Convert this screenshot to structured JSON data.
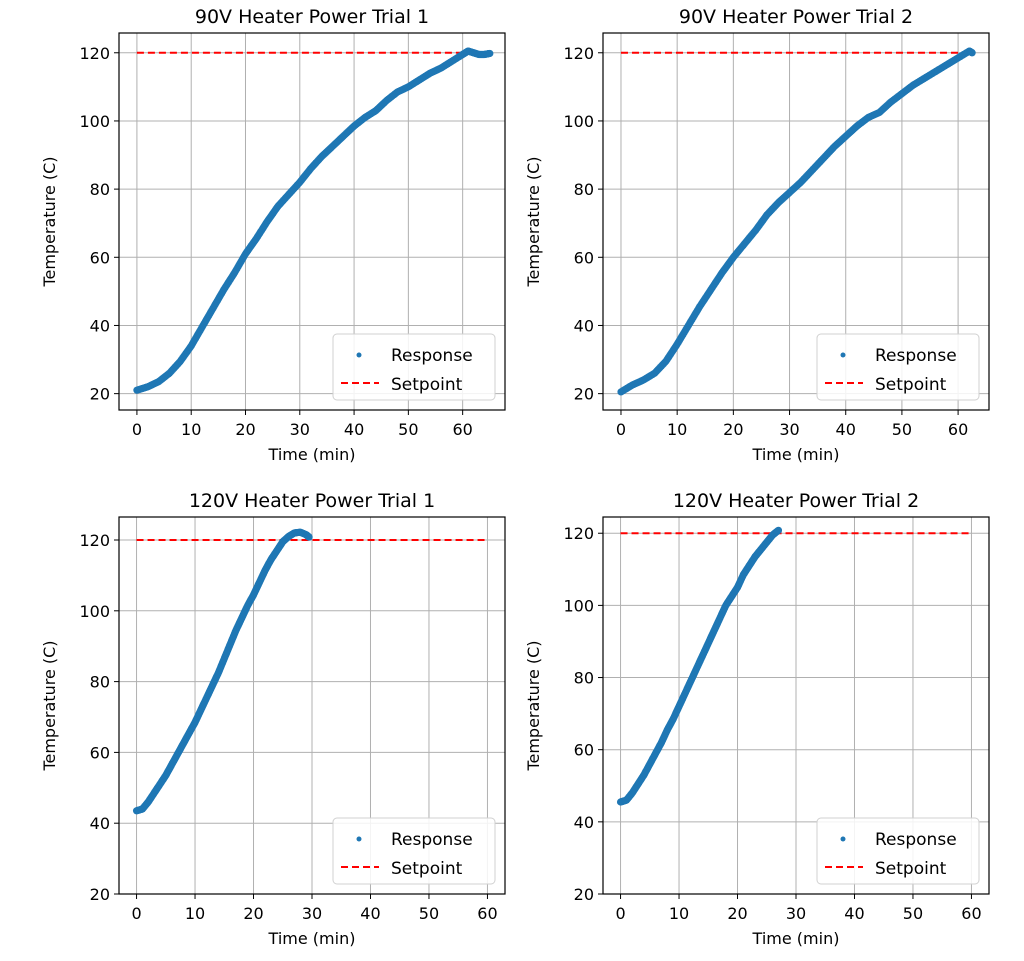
{
  "colors": {
    "response": "#1f77b4",
    "setpoint": "#ff0000",
    "grid": "#b0b0b0",
    "frame": "#000000"
  },
  "chart_data": [
    {
      "type": "scatter",
      "title": "90V Heater Power Trial 1",
      "xlabel": "Time (min)",
      "ylabel": "Temperature (C)",
      "xticks": [
        "0",
        "10",
        "20",
        "30",
        "40",
        "50",
        "60"
      ],
      "yticks": [
        "20",
        "40",
        "60",
        "80",
        "100",
        "120"
      ],
      "xlim": [
        -3.3,
        67.8
      ],
      "ylim": [
        15.2,
        125.8
      ],
      "grid": true,
      "legend_position": "lower-right",
      "series": [
        {
          "name": "Response",
          "kind": "points",
          "points": [
            [
              0,
              21
            ],
            [
              2,
              22
            ],
            [
              4,
              23.5
            ],
            [
              6,
              26
            ],
            [
              8,
              29.5
            ],
            [
              10,
              34
            ],
            [
              12,
              39.5
            ],
            [
              14,
              45
            ],
            [
              16,
              50.5
            ],
            [
              18,
              55.5
            ],
            [
              20,
              61
            ],
            [
              22,
              65.5
            ],
            [
              24,
              70.5
            ],
            [
              26,
              75
            ],
            [
              28,
              78.5
            ],
            [
              30,
              82
            ],
            [
              32,
              86
            ],
            [
              34,
              89.5
            ],
            [
              36,
              92.5
            ],
            [
              38,
              95.5
            ],
            [
              40,
              98.5
            ],
            [
              42,
              101
            ],
            [
              44,
              103
            ],
            [
              46,
              106
            ],
            [
              48,
              108.5
            ],
            [
              50,
              110
            ],
            [
              52,
              112
            ],
            [
              54,
              114
            ],
            [
              56,
              115.5
            ],
            [
              58,
              117.5
            ],
            [
              60,
              119.5
            ],
            [
              61,
              120.5
            ],
            [
              62,
              120
            ],
            [
              63,
              119.5
            ],
            [
              64,
              119.5
            ],
            [
              65,
              119.8
            ]
          ]
        },
        {
          "name": "Setpoint",
          "kind": "dashed-line",
          "points": [
            [
              0,
              120
            ],
            [
              65,
              120
            ]
          ]
        }
      ]
    },
    {
      "type": "scatter",
      "title": "90V Heater Power Trial 2",
      "xlabel": "Time (min)",
      "ylabel": "Temperature (C)",
      "xticks": [
        "0",
        "10",
        "20",
        "30",
        "40",
        "50",
        "60"
      ],
      "yticks": [
        "20",
        "40",
        "60",
        "80",
        "100",
        "120"
      ],
      "xlim": [
        -3.2,
        65.5
      ],
      "ylim": [
        15.2,
        125.8
      ],
      "grid": true,
      "legend_position": "lower-right",
      "series": [
        {
          "name": "Response",
          "kind": "points",
          "points": [
            [
              0,
              20.5
            ],
            [
              2,
              22.5
            ],
            [
              4,
              24
            ],
            [
              6,
              26
            ],
            [
              8,
              29.5
            ],
            [
              10,
              34.5
            ],
            [
              12,
              40
            ],
            [
              14,
              45.5
            ],
            [
              16,
              50.5
            ],
            [
              18,
              55.5
            ],
            [
              20,
              60
            ],
            [
              22,
              64
            ],
            [
              24,
              68
            ],
            [
              26,
              72.5
            ],
            [
              28,
              76
            ],
            [
              30,
              79
            ],
            [
              32,
              82
            ],
            [
              34,
              85.5
            ],
            [
              36,
              89
            ],
            [
              38,
              92.5
            ],
            [
              40,
              95.5
            ],
            [
              42,
              98.5
            ],
            [
              44,
              101
            ],
            [
              46,
              102.5
            ],
            [
              48,
              105.5
            ],
            [
              50,
              108
            ],
            [
              52,
              110.5
            ],
            [
              54,
              112.5
            ],
            [
              56,
              114.5
            ],
            [
              58,
              116.5
            ],
            [
              60,
              118.5
            ],
            [
              62,
              120.5
            ],
            [
              62.5,
              120
            ]
          ]
        },
        {
          "name": "Setpoint",
          "kind": "dashed-line",
          "points": [
            [
              0,
              120
            ],
            [
              62.5,
              120
            ]
          ]
        }
      ]
    },
    {
      "type": "scatter",
      "title": "120V Heater Power Trial 1",
      "xlabel": "Time (min)",
      "ylabel": "Temperature (C)",
      "xticks": [
        "0",
        "10",
        "20",
        "30",
        "40",
        "50",
        "60"
      ],
      "yticks": [
        "20",
        "40",
        "60",
        "80",
        "100",
        "120"
      ],
      "xlim": [
        -3,
        63
      ],
      "ylim": [
        20,
        126.5
      ],
      "grid": true,
      "legend_position": "lower-right",
      "series": [
        {
          "name": "Response",
          "kind": "points",
          "points": [
            [
              0,
              43.5
            ],
            [
              1,
              44
            ],
            [
              2,
              46
            ],
            [
              3,
              48.5
            ],
            [
              4,
              51
            ],
            [
              5,
              53.5
            ],
            [
              6,
              56.5
            ],
            [
              7,
              59.5
            ],
            [
              8,
              62.5
            ],
            [
              9,
              65.5
            ],
            [
              10,
              68.5
            ],
            [
              11,
              72
            ],
            [
              12,
              75.5
            ],
            [
              13,
              79
            ],
            [
              14,
              82.5
            ],
            [
              15,
              86.5
            ],
            [
              16,
              90.5
            ],
            [
              17,
              94.5
            ],
            [
              18,
              98
            ],
            [
              19,
              101.5
            ],
            [
              20,
              104.5
            ],
            [
              21,
              108
            ],
            [
              22,
              111.5
            ],
            [
              23,
              114.5
            ],
            [
              24,
              117
            ],
            [
              25,
              119.5
            ],
            [
              26,
              121
            ],
            [
              27,
              122
            ],
            [
              28,
              122.2
            ],
            [
              29,
              121.5
            ],
            [
              29.5,
              120.8
            ]
          ]
        },
        {
          "name": "Setpoint",
          "kind": "dashed-line",
          "points": [
            [
              0,
              120
            ],
            [
              60,
              120
            ]
          ]
        }
      ]
    },
    {
      "type": "scatter",
      "title": "120V Heater Power Trial 2",
      "xlabel": "Time (min)",
      "ylabel": "Temperature (C)",
      "xticks": [
        "0",
        "10",
        "20",
        "30",
        "40",
        "50",
        "60"
      ],
      "yticks": [
        "20",
        "40",
        "60",
        "80",
        "100",
        "120"
      ],
      "xlim": [
        -3,
        63
      ],
      "ylim": [
        20,
        124.5
      ],
      "grid": true,
      "legend_position": "lower-right",
      "series": [
        {
          "name": "Response",
          "kind": "points",
          "points": [
            [
              0,
              45.5
            ],
            [
              1,
              46
            ],
            [
              2,
              48
            ],
            [
              3,
              50.5
            ],
            [
              4,
              53
            ],
            [
              5,
              56
            ],
            [
              6,
              59
            ],
            [
              7,
              62
            ],
            [
              8,
              65.5
            ],
            [
              9,
              68.5
            ],
            [
              10,
              72
            ],
            [
              11,
              75.5
            ],
            [
              12,
              79
            ],
            [
              13,
              82.5
            ],
            [
              14,
              86
            ],
            [
              15,
              89.5
            ],
            [
              16,
              93
            ],
            [
              17,
              96.5
            ],
            [
              18,
              100
            ],
            [
              19,
              102.5
            ],
            [
              20,
              105
            ],
            [
              21,
              108.5
            ],
            [
              22,
              111
            ],
            [
              23,
              113.5
            ],
            [
              24,
              115.5
            ],
            [
              25,
              117.5
            ],
            [
              26,
              119.5
            ],
            [
              27,
              120.8
            ]
          ]
        },
        {
          "name": "Setpoint",
          "kind": "dashed-line",
          "points": [
            [
              0,
              120
            ],
            [
              60,
              120
            ]
          ]
        }
      ]
    }
  ]
}
